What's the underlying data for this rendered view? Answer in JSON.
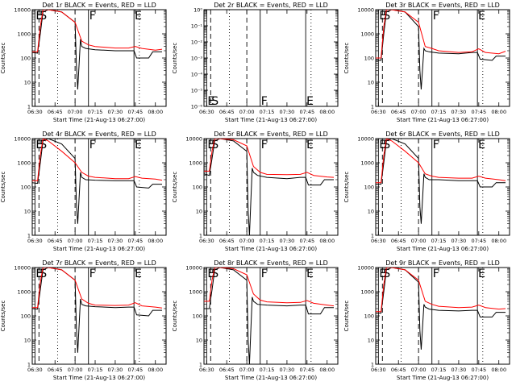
{
  "figure": {
    "xlabel": "Start Time (21-Aug-13 06:27:00)",
    "ylabel": "Counts/sec",
    "colors": {
      "events": "#000000",
      "lld": "#ff0000"
    },
    "x_ticks": [
      "06:30",
      "06:45",
      "07:00",
      "07:15",
      "07:30",
      "07:45",
      "08:00"
    ],
    "markers": [
      {
        "label": "E",
        "time": "06:30",
        "style": "solid"
      },
      {
        "label": "S",
        "time": "06:33",
        "style": "dashed"
      },
      {
        "label": "",
        "time": "06:47",
        "style": "dotted"
      },
      {
        "label": "",
        "time": "07:00",
        "style": "dashed"
      },
      {
        "label": "F",
        "time": "07:10",
        "style": "solid"
      },
      {
        "label": "E",
        "time": "07:44",
        "style": "solid"
      },
      {
        "label": "",
        "time": "07:48",
        "style": "dotted"
      }
    ]
  },
  "chart_data": [
    {
      "type": "line",
      "title": "Det 1r BLACK = Events, RED = LLD",
      "ylim": [
        1,
        10000
      ],
      "y_ticks": [
        "1",
        "10",
        "100",
        "1000",
        "10000"
      ],
      "has_data": true,
      "series": [
        {
          "name": "Events",
          "x": [
            "06:28",
            "06:32",
            "06:34",
            "06:36",
            "06:40",
            "06:50",
            "07:00",
            "07:01",
            "07:02",
            "07:04",
            "07:05",
            "07:08",
            "07:15",
            "07:30",
            "07:40",
            "07:44",
            "07:46",
            "07:55",
            "07:58",
            "08:05"
          ],
          "values": [
            170,
            160,
            1000,
            8000,
            10000,
            8000,
            3000,
            50,
            5,
            600,
            300,
            250,
            220,
            200,
            200,
            200,
            100,
            100,
            180,
            180
          ]
        },
        {
          "name": "LLD",
          "x": [
            "06:28",
            "06:32",
            "06:34",
            "06:36",
            "06:40",
            "06:50",
            "07:00",
            "07:05",
            "07:10",
            "07:15",
            "07:30",
            "07:40",
            "07:45",
            "07:50",
            "08:00",
            "08:05"
          ],
          "values": [
            180,
            180,
            2000,
            10000,
            10000,
            8000,
            3000,
            500,
            350,
            300,
            260,
            260,
            300,
            250,
            210,
            230
          ]
        }
      ]
    },
    {
      "type": "line",
      "title": "Det 2r BLACK = Events, RED = LLD",
      "ylim": [
        1e-06,
        1
      ],
      "y_ticks": [
        "10⁻⁶",
        "10⁻⁵",
        "10⁻⁴",
        "10⁻³",
        "10⁻²",
        "10⁻¹",
        "10⁰"
      ],
      "has_data": false,
      "series": []
    },
    {
      "type": "line",
      "title": "Det 3r BLACK = Events, RED = LLD",
      "ylim": [
        1,
        10000
      ],
      "y_ticks": [
        "1",
        "10",
        "100",
        "1000",
        "10000"
      ],
      "has_data": true,
      "series": [
        {
          "name": "Events",
          "x": [
            "06:28",
            "06:32",
            "06:34",
            "06:36",
            "06:40",
            "06:50",
            "07:00",
            "07:01",
            "07:02",
            "07:04",
            "07:05",
            "07:08",
            "07:15",
            "07:30",
            "07:40",
            "07:44",
            "07:46",
            "07:55",
            "07:58",
            "08:05"
          ],
          "values": [
            80,
            80,
            1000,
            8000,
            10000,
            8000,
            2000,
            30,
            5,
            250,
            200,
            180,
            160,
            150,
            170,
            170,
            90,
            80,
            120,
            120
          ]
        },
        {
          "name": "LLD",
          "x": [
            "06:28",
            "06:32",
            "06:34",
            "06:36",
            "06:40",
            "06:50",
            "07:00",
            "07:05",
            "07:10",
            "07:15",
            "07:30",
            "07:40",
            "07:45",
            "07:50",
            "08:00",
            "08:05"
          ],
          "values": [
            100,
            100,
            2000,
            10000,
            10000,
            8000,
            3000,
            300,
            250,
            200,
            170,
            180,
            240,
            170,
            150,
            190
          ]
        }
      ]
    },
    {
      "type": "line",
      "title": "Det 4r BLACK = Events, RED = LLD",
      "ylim": [
        1,
        10000
      ],
      "y_ticks": [
        "1",
        "10",
        "100",
        "1000",
        "10000"
      ],
      "has_data": true,
      "series": [
        {
          "name": "Events",
          "x": [
            "06:28",
            "06:32",
            "06:34",
            "06:36",
            "06:40",
            "06:50",
            "07:00",
            "07:01",
            "07:02",
            "07:04",
            "07:05",
            "07:08",
            "07:15",
            "07:30",
            "07:40",
            "07:44",
            "07:46",
            "07:55",
            "07:58",
            "08:05"
          ],
          "values": [
            150,
            140,
            1000,
            8000,
            10000,
            6000,
            1500,
            20,
            3,
            400,
            250,
            200,
            190,
            180,
            180,
            180,
            100,
            90,
            130,
            130
          ]
        },
        {
          "name": "LLD",
          "x": [
            "06:28",
            "06:32",
            "06:34",
            "06:36",
            "06:40",
            "06:50",
            "07:00",
            "07:05",
            "07:10",
            "07:15",
            "07:30",
            "07:40",
            "07:45",
            "07:50",
            "08:00",
            "08:05"
          ],
          "values": [
            180,
            180,
            2000,
            10000,
            8000,
            3000,
            1000,
            400,
            280,
            250,
            220,
            220,
            270,
            230,
            210,
            190
          ]
        }
      ]
    },
    {
      "type": "line",
      "title": "Det 5r BLACK = Events, RED = LLD",
      "ylim": [
        1,
        10000
      ],
      "y_ticks": [
        "1",
        "10",
        "100",
        "1000",
        "10000"
      ],
      "has_data": true,
      "series": [
        {
          "name": "Events",
          "x": [
            "06:28",
            "06:32",
            "06:34",
            "06:36",
            "06:40",
            "06:50",
            "07:00",
            "07:01",
            "07:02",
            "07:04",
            "07:05",
            "07:08",
            "07:15",
            "07:30",
            "07:40",
            "07:44",
            "07:46",
            "07:55",
            "07:58",
            "08:05"
          ],
          "values": [
            350,
            300,
            1500,
            8000,
            10000,
            8000,
            3000,
            10,
            1,
            600,
            400,
            300,
            250,
            220,
            250,
            250,
            120,
            120,
            200,
            200
          ]
        },
        {
          "name": "LLD",
          "x": [
            "06:28",
            "06:32",
            "06:34",
            "06:36",
            "06:40",
            "06:50",
            "07:00",
            "07:05",
            "07:10",
            "07:15",
            "07:30",
            "07:40",
            "07:45",
            "07:50",
            "08:00",
            "08:05"
          ],
          "values": [
            450,
            450,
            3000,
            10000,
            10000,
            9000,
            5000,
            700,
            400,
            330,
            320,
            330,
            400,
            300,
            260,
            250
          ]
        }
      ]
    },
    {
      "type": "line",
      "title": "Det 6r BLACK = Events, RED = LLD",
      "ylim": [
        1,
        10000
      ],
      "y_ticks": [
        "1",
        "10",
        "100",
        "1000",
        "10000"
      ],
      "has_data": true,
      "series": [
        {
          "name": "Events",
          "x": [
            "06:28",
            "06:32",
            "06:34",
            "06:36",
            "06:40",
            "06:50",
            "07:00",
            "07:01",
            "07:02",
            "07:04",
            "07:05",
            "07:08",
            "07:15",
            "07:30",
            "07:40",
            "07:44",
            "07:46",
            "07:55",
            "07:58",
            "08:05"
          ],
          "values": [
            130,
            130,
            1000,
            8000,
            10000,
            6000,
            1500,
            15,
            3,
            350,
            250,
            200,
            200,
            180,
            180,
            180,
            100,
            100,
            150,
            150
          ]
        },
        {
          "name": "LLD",
          "x": [
            "06:28",
            "06:32",
            "06:34",
            "06:36",
            "06:40",
            "06:50",
            "07:00",
            "07:05",
            "07:10",
            "07:15",
            "07:30",
            "07:40",
            "07:45",
            "07:50",
            "08:00",
            "08:05"
          ],
          "values": [
            150,
            150,
            2000,
            10000,
            8000,
            3000,
            1000,
            350,
            280,
            250,
            230,
            230,
            280,
            230,
            200,
            180
          ]
        }
      ]
    },
    {
      "type": "line",
      "title": "Det 7r BLACK = Events, RED = LLD",
      "ylim": [
        1,
        10000
      ],
      "y_ticks": [
        "1",
        "10",
        "100",
        "1000",
        "10000"
      ],
      "has_data": true,
      "series": [
        {
          "name": "Events",
          "x": [
            "06:28",
            "06:32",
            "06:34",
            "06:36",
            "06:40",
            "06:50",
            "07:00",
            "07:01",
            "07:02",
            "07:04",
            "07:05",
            "07:08",
            "07:15",
            "07:30",
            "07:40",
            "07:44",
            "07:46",
            "07:55",
            "07:58",
            "08:05"
          ],
          "values": [
            200,
            190,
            1200,
            8000,
            10000,
            8000,
            3000,
            30,
            3,
            500,
            300,
            260,
            240,
            220,
            230,
            230,
            110,
            100,
            170,
            170
          ]
        },
        {
          "name": "LLD",
          "x": [
            "06:28",
            "06:32",
            "06:34",
            "06:36",
            "06:40",
            "06:50",
            "07:00",
            "07:05",
            "07:10",
            "07:15",
            "07:30",
            "07:40",
            "07:45",
            "07:50",
            "08:00",
            "08:05"
          ],
          "values": [
            220,
            220,
            2500,
            10000,
            10000,
            8000,
            3000,
            500,
            330,
            280,
            270,
            280,
            350,
            260,
            230,
            210
          ]
        }
      ]
    },
    {
      "type": "line",
      "title": "Det 8r BLACK = Events, RED = LLD",
      "ylim": [
        1,
        10000
      ],
      "y_ticks": [
        "1",
        "10",
        "100",
        "1000",
        "10000"
      ],
      "has_data": true,
      "series": [
        {
          "name": "Events",
          "x": [
            "06:28",
            "06:32",
            "06:34",
            "06:36",
            "06:40",
            "06:50",
            "07:00",
            "07:01",
            "07:02",
            "07:04",
            "07:05",
            "07:08",
            "07:15",
            "07:30",
            "07:40",
            "07:44",
            "07:46",
            "07:55",
            "07:58",
            "08:05"
          ],
          "values": [
            200,
            200,
            1200,
            8000,
            10000,
            8000,
            3000,
            10,
            1,
            600,
            400,
            300,
            280,
            260,
            280,
            280,
            120,
            120,
            220,
            220
          ]
        },
        {
          "name": "LLD",
          "x": [
            "06:28",
            "06:32",
            "06:34",
            "06:36",
            "06:40",
            "06:50",
            "07:00",
            "07:05",
            "07:10",
            "07:15",
            "07:30",
            "07:40",
            "07:45",
            "07:50",
            "08:00",
            "08:05"
          ],
          "values": [
            400,
            400,
            3000,
            10000,
            10000,
            9000,
            5000,
            800,
            450,
            380,
            350,
            360,
            430,
            330,
            280,
            260
          ]
        }
      ]
    },
    {
      "type": "line",
      "title": "Det 9r BLACK = Events, RED = LLD",
      "ylim": [
        1,
        10000
      ],
      "y_ticks": [
        "1",
        "10",
        "100",
        "1000",
        "10000"
      ],
      "has_data": true,
      "series": [
        {
          "name": "Events",
          "x": [
            "06:28",
            "06:32",
            "06:34",
            "06:36",
            "06:40",
            "06:50",
            "07:00",
            "07:01",
            "07:02",
            "07:04",
            "07:05",
            "07:08",
            "07:15",
            "07:30",
            "07:40",
            "07:44",
            "07:46",
            "07:55",
            "07:58",
            "08:05"
          ],
          "values": [
            130,
            130,
            1000,
            8000,
            10000,
            8000,
            2500,
            25,
            4,
            300,
            230,
            190,
            170,
            160,
            170,
            170,
            90,
            90,
            140,
            140
          ]
        },
        {
          "name": "LLD",
          "x": [
            "06:28",
            "06:32",
            "06:34",
            "06:36",
            "06:40",
            "06:50",
            "07:00",
            "07:05",
            "07:10",
            "07:15",
            "07:30",
            "07:40",
            "07:45",
            "07:50",
            "08:00",
            "08:05"
          ],
          "values": [
            150,
            150,
            2000,
            10000,
            10000,
            8000,
            3000,
            400,
            300,
            250,
            220,
            230,
            280,
            220,
            190,
            200
          ]
        }
      ]
    }
  ]
}
